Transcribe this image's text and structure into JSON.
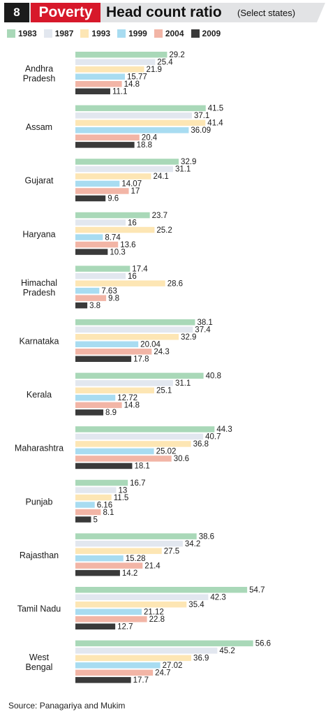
{
  "header": {
    "number": "8",
    "tag": "Poverty",
    "title": "Head count ratio",
    "subtitle": "(Select states)"
  },
  "source": "Source: Panagariya and Mukim",
  "chart_data": {
    "type": "bar",
    "orientation": "horizontal",
    "title": "Head count ratio",
    "subtitle": "(Select states)",
    "xlabel": "",
    "ylabel": "",
    "xlim": [
      0,
      60
    ],
    "grid": false,
    "legend_position": "top",
    "series_names": [
      "1983",
      "1987",
      "1993",
      "1999",
      "2004",
      "2009"
    ],
    "colors": [
      "#a9d8b8",
      "#e2e7ef",
      "#fde6b4",
      "#a8dcf1",
      "#f2b5a6",
      "#3a3a3a"
    ],
    "categories": [
      {
        "label": [
          "Andhra",
          "Pradesh"
        ],
        "values": [
          "29.2",
          "25.4",
          "21.9",
          "15.77",
          "14.8",
          "11.1"
        ]
      },
      {
        "label": [
          "Assam"
        ],
        "values": [
          "41.5",
          "37.1",
          "41.4",
          "36.09",
          "20.4",
          "18.8"
        ]
      },
      {
        "label": [
          "Gujarat"
        ],
        "values": [
          "32.9",
          "31.1",
          "24.1",
          "14.07",
          "17",
          "9.6"
        ]
      },
      {
        "label": [
          "Haryana"
        ],
        "values": [
          "23.7",
          "16",
          "25.2",
          "8.74",
          "13.6",
          "10.3"
        ]
      },
      {
        "label": [
          "Himachal",
          "Pradesh"
        ],
        "values": [
          "17.4",
          "16",
          "28.6",
          "7.63",
          "9.8",
          "3.8"
        ]
      },
      {
        "label": [
          "Karnataka"
        ],
        "values": [
          "38.1",
          "37.4",
          "32.9",
          "20.04",
          "24.3",
          "17.8"
        ]
      },
      {
        "label": [
          "Kerala"
        ],
        "values": [
          "40.8",
          "31.1",
          "25.1",
          "12.72",
          "14.8",
          "8.9"
        ]
      },
      {
        "label": [
          "Maharashtra"
        ],
        "values": [
          "44.3",
          "40.7",
          "36.8",
          "25.02",
          "30.6",
          "18.1"
        ]
      },
      {
        "label": [
          "Punjab"
        ],
        "values": [
          "16.7",
          "13",
          "11.5",
          "6.16",
          "8.1",
          "5"
        ]
      },
      {
        "label": [
          "Rajasthan"
        ],
        "values": [
          "38.6",
          "34.2",
          "27.5",
          "15.28",
          "21.4",
          "14.2"
        ]
      },
      {
        "label": [
          "Tamil Nadu"
        ],
        "values": [
          "54.7",
          "42.3",
          "35.4",
          "21.12",
          "22.8",
          "12.7"
        ]
      },
      {
        "label": [
          "West",
          "Bengal"
        ],
        "values": [
          "56.6",
          "45.2",
          "36.9",
          "27.02",
          "24.7",
          "17.7"
        ]
      }
    ]
  }
}
